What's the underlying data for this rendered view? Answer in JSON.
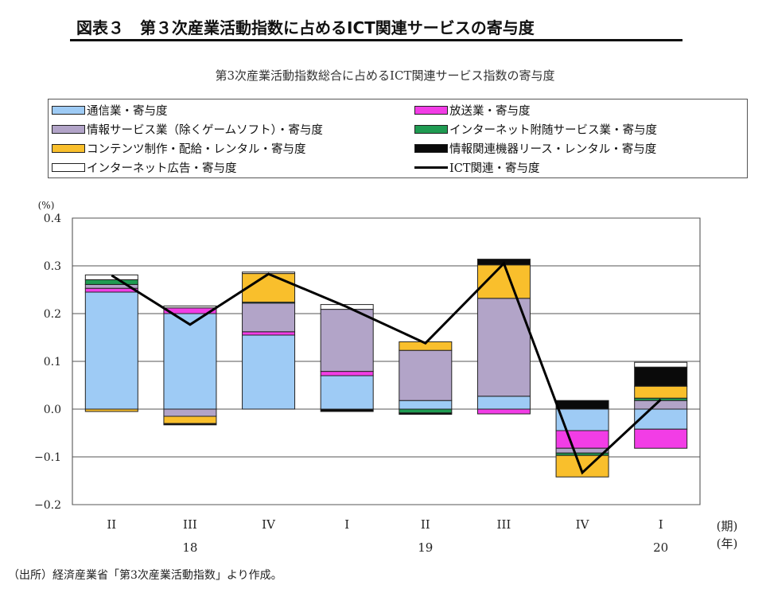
{
  "figure_title": "図表３　第３次産業活動指数に占めるICT関連サービスの寄与度",
  "source_note": "（出所）経済産業省「第3次産業活動指数」より作成。",
  "colors": {
    "telecom": "#9ecbf5",
    "broadcast": "#f23de6",
    "info_service": "#b2a4c8",
    "internet_support": "#1f9b52",
    "content": "#f9bf2c",
    "leasing": "#0a0a0a",
    "internet_ad": "#ffffff",
    "ict_line": "#000000"
  },
  "chart_data": {
    "type": "bar",
    "stacked": true,
    "title": "第3次産業活動指数総合に占めるICT関連サービス指数の寄与度",
    "ylabel": "(%)",
    "ylim": [
      -0.2,
      0.4
    ],
    "yticks": [
      "−0.2",
      "−0.1",
      "0.0",
      "0.1",
      "0.2",
      "0.3",
      "0.4"
    ],
    "ytick_values": [
      -0.2,
      -0.1,
      0.0,
      0.1,
      0.2,
      0.3,
      0.4
    ],
    "grid": true,
    "categories": [
      "II",
      "III",
      "IV",
      "I",
      "II",
      "III",
      "IV",
      "I"
    ],
    "year_labels": [
      {
        "label": "18",
        "category_index": 1
      },
      {
        "label": "19",
        "category_index": 4
      },
      {
        "label": "20",
        "category_index": 7
      }
    ],
    "x_unit_labels": [
      "(期)",
      "(年)"
    ],
    "legend_placement": "top",
    "series": [
      {
        "name": "通信業・寄与度",
        "key": "telecom",
        "color_key": "telecom",
        "values": [
          0.245,
          0.2,
          0.155,
          0.07,
          0.018,
          0.027,
          -0.045,
          -0.042
        ]
      },
      {
        "name": "放送業・寄与度",
        "key": "broadcast",
        "color_key": "broadcast",
        "values": [
          0.008,
          0.012,
          0.007,
          0.009,
          0.0,
          -0.01,
          -0.037,
          -0.04
        ]
      },
      {
        "name": "情報サービス業（除くゲームソフト）・寄与度",
        "key": "info_service",
        "color_key": "info_service",
        "values": [
          0.008,
          -0.015,
          0.06,
          0.13,
          0.105,
          0.205,
          -0.01,
          0.018
        ]
      },
      {
        "name": "インターネット附随サービス業・寄与度",
        "key": "internet_support",
        "color_key": "internet_support",
        "values": [
          0.01,
          0.0,
          0.002,
          0.0,
          -0.008,
          0.0,
          -0.005,
          0.005
        ]
      },
      {
        "name": "コンテンツ制作・配給・レンタル・寄与度",
        "key": "content",
        "color_key": "content",
        "values": [
          -0.005,
          -0.015,
          0.06,
          0.0,
          0.018,
          0.07,
          -0.045,
          0.025
        ]
      },
      {
        "name": "情報関連機器リース・レンタル・寄与度",
        "key": "leasing",
        "color_key": "leasing",
        "values": [
          0.0,
          -0.003,
          0.0,
          -0.005,
          -0.003,
          0.012,
          0.018,
          0.04
        ]
      },
      {
        "name": "インターネット広告・寄与度",
        "key": "internet_ad",
        "color_key": "internet_ad",
        "values": [
          0.01,
          0.004,
          0.003,
          0.01,
          0.0,
          0.0,
          0.0,
          0.01
        ]
      }
    ],
    "line_series": {
      "name": "ICT関連・寄与度",
      "color_key": "ict_line",
      "values": [
        0.28,
        0.177,
        0.283,
        0.214,
        0.138,
        0.305,
        -0.133,
        0.02
      ]
    },
    "legend_layout": [
      [
        "telecom",
        "broadcast"
      ],
      [
        "info_service",
        "internet_support"
      ],
      [
        "content",
        "leasing"
      ],
      [
        "internet_ad",
        "ict_line"
      ]
    ]
  }
}
